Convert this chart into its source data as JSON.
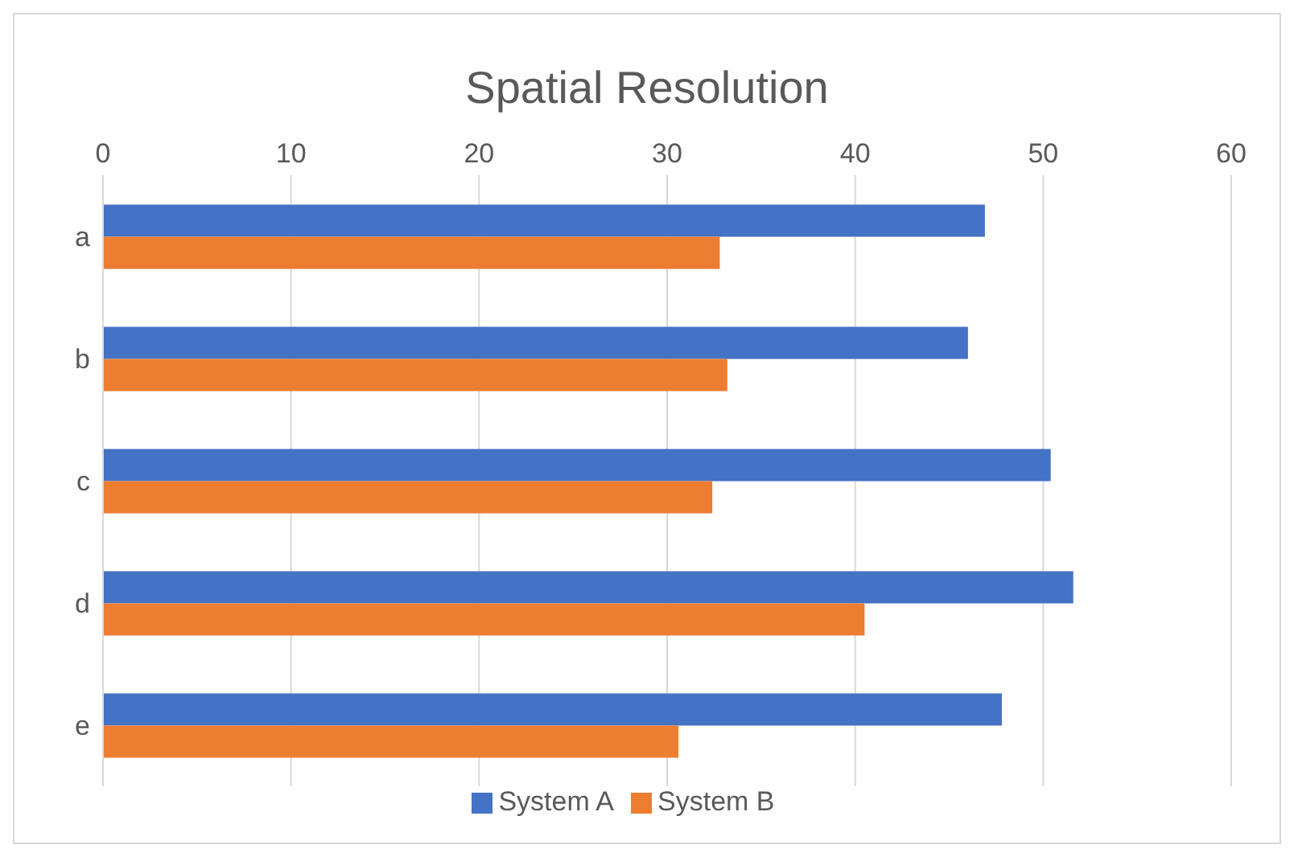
{
  "chart_data": {
    "type": "bar",
    "orientation": "horizontal",
    "title": "Spatial Resolution",
    "categories": [
      "a",
      "b",
      "c",
      "d",
      "e"
    ],
    "series": [
      {
        "name": "System A",
        "color": "#4472c4",
        "values": [
          46.9,
          46.0,
          50.4,
          51.6,
          47.8
        ]
      },
      {
        "name": "System B",
        "color": "#ed7d31",
        "values": [
          32.8,
          33.2,
          32.4,
          40.5,
          30.6
        ]
      }
    ],
    "xlim": [
      0,
      60
    ],
    "xticks": [
      0,
      10,
      20,
      30,
      40,
      50,
      60
    ],
    "grid": "x",
    "legend": "bottom"
  }
}
